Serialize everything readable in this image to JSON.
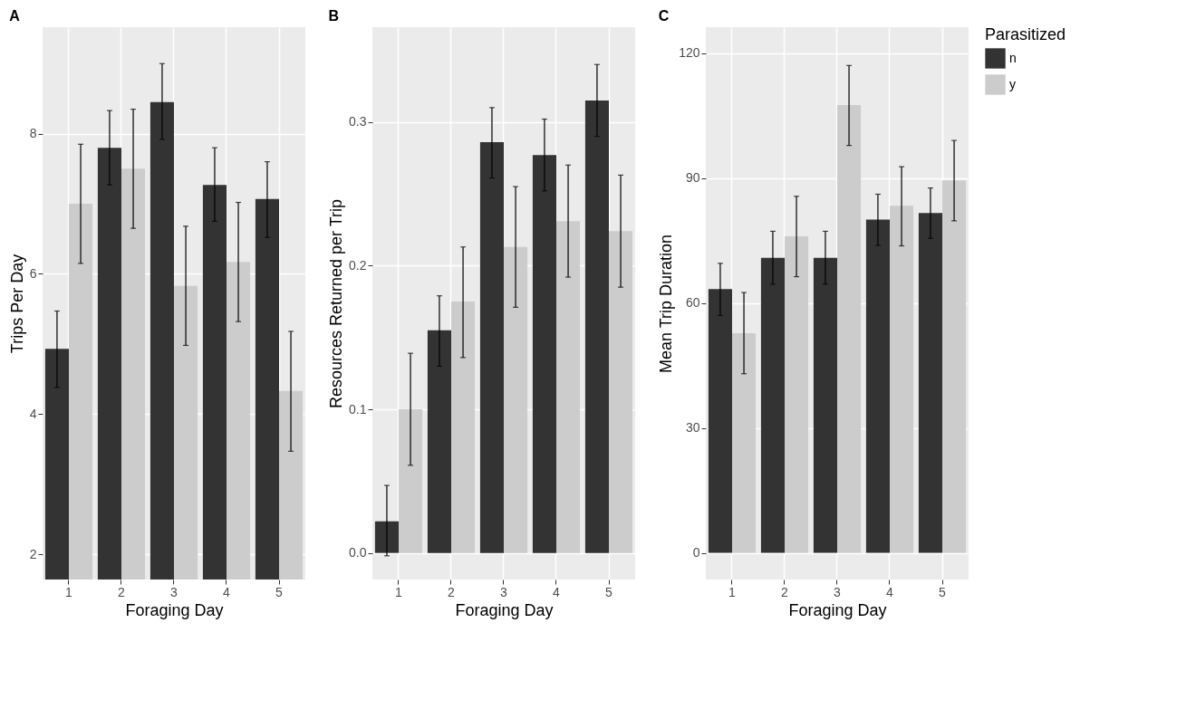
{
  "chart_data": [
    {
      "type": "bar",
      "title": "A",
      "categories": [
        "1",
        "2",
        "3",
        "4",
        "5"
      ],
      "xlabel": "Foraging Day",
      "ylabel": "Trips Per Day",
      "ylim": [
        1.64,
        9.52
      ],
      "yticks": [
        2,
        4,
        6,
        8
      ],
      "grid": true,
      "legend": false,
      "series": [
        {
          "color": "#333333",
          "values": [
            4.93,
            7.8,
            8.45,
            7.27,
            7.07
          ],
          "errors": [
            [
              4.38,
              5.47
            ],
            [
              7.27,
              8.33
            ],
            [
              7.92,
              9.0
            ],
            [
              6.75,
              7.8
            ],
            [
              6.52,
              7.6
            ]
          ]
        },
        {
          "color": "#cccccc",
          "values": [
            7.0,
            7.5,
            5.83,
            6.17,
            4.33
          ],
          "errors": [
            [
              6.15,
              7.85
            ],
            [
              6.65,
              8.35
            ],
            [
              4.98,
              6.68
            ],
            [
              5.32,
              7.02
            ],
            [
              3.47,
              5.18
            ]
          ]
        }
      ]
    },
    {
      "type": "bar",
      "title": "B",
      "categories": [
        "1",
        "2",
        "3",
        "4",
        "5"
      ],
      "xlabel": "Foraging Day",
      "ylabel": "Resources Returned per Trip",
      "ylim": [
        -0.0185,
        0.366
      ],
      "yticks": [
        {
          "value": 0,
          "label": "0.0"
        },
        0.1,
        0.2,
        0.3
      ],
      "grid": true,
      "legend": false,
      "series": [
        {
          "color": "#333333",
          "values": [
            0.022,
            0.155,
            0.286,
            0.277,
            0.315
          ],
          "errors": [
            [
              -0.002,
              0.047
            ],
            [
              0.13,
              0.179
            ],
            [
              0.261,
              0.31
            ],
            [
              0.252,
              0.302
            ],
            [
              0.29,
              0.34
            ]
          ]
        },
        {
          "color": "#cccccc",
          "values": [
            0.1,
            0.175,
            0.213,
            0.231,
            0.224
          ],
          "errors": [
            [
              0.061,
              0.139
            ],
            [
              0.136,
              0.213
            ],
            [
              0.171,
              0.255
            ],
            [
              0.192,
              0.27
            ],
            [
              0.185,
              0.263
            ]
          ]
        }
      ]
    },
    {
      "type": "bar",
      "title": "C",
      "categories": [
        "1",
        "2",
        "3",
        "4",
        "5"
      ],
      "xlabel": "Foraging Day",
      "ylabel": "Mean Trip Duration",
      "ylim": [
        -6.4,
        126.2
      ],
      "yticks": [
        0,
        30,
        60,
        90,
        120
      ],
      "grid": true,
      "legend": "right",
      "legend_title": "Parasitized",
      "series": [
        {
          "name": "n",
          "color": "#333333",
          "values": [
            63.3,
            70.8,
            70.8,
            80,
            81.6
          ],
          "errors": [
            [
              57,
              69.5
            ],
            [
              64.5,
              77.2
            ],
            [
              64.5,
              77.2
            ],
            [
              73.8,
              86.1
            ],
            [
              75.5,
              87.6
            ]
          ]
        },
        {
          "name": "y",
          "color": "#cccccc",
          "values": [
            52.7,
            76,
            107.5,
            83.3,
            89.4
          ],
          "errors": [
            [
              43,
              62.5
            ],
            [
              66.3,
              85.6
            ],
            [
              97.8,
              117
            ],
            [
              73.7,
              92.7
            ],
            [
              79.7,
              99
            ]
          ]
        }
      ]
    }
  ]
}
